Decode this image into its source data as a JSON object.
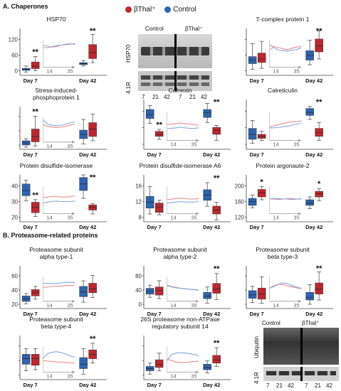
{
  "sectionA": "A. Chaperones",
  "sectionB": "B. Proteasome-related proteins",
  "legend": [
    {
      "label": "βThal⁺",
      "color": "#c0262d"
    },
    {
      "label": "Control",
      "color": "#2e63b0"
    }
  ],
  "colors": {
    "thal": "#c0262d",
    "control": "#2e63b0",
    "thalLine": "#f08a8a",
    "controlLine": "#7fa8de"
  },
  "blotTop": {
    "header_control": "Control",
    "header_thal": "βThal⁺",
    "band1": "HSP70",
    "band2": "4.1R",
    "lanes": [
      "7",
      "21",
      "42",
      "7",
      "21",
      "42"
    ]
  },
  "blotBottom": {
    "header_control": "Control",
    "header_thal": "βThal⁺",
    "band1": "Ubiquitin",
    "band2": "4.1R",
    "lanes": [
      "7",
      "21",
      "42",
      "7",
      "21",
      "42"
    ]
  },
  "chart_data": [
    {
      "type": "box",
      "title": [
        "HSP70"
      ],
      "yticks": [
        "0",
        "60",
        "120"
      ],
      "ylim": [
        0,
        140
      ],
      "xlabels": [
        "Day 7",
        "Day 42"
      ],
      "inset_ticks": [
        "14",
        "35"
      ],
      "significance": [
        "**",
        "**"
      ],
      "boxes": {
        "control": [
          [
            10,
            15,
            18,
            21,
            28
          ],
          [
            28,
            32,
            35,
            38,
            44
          ]
        ],
        "thal": [
          [
            14,
            20,
            27,
            40,
            56
          ],
          [
            38,
            50,
            68,
            92,
            122
          ]
        ]
      },
      "inset": {
        "thal": [
          80,
          76,
          72,
          74,
          80,
          84,
          86,
          82
        ],
        "control": [
          70,
          70,
          74,
          78,
          80,
          82,
          84,
          86
        ]
      }
    },
    {
      "type": "box",
      "title": [
        "T-complex protein 1"
      ],
      "yticks": [
        "",
        "",
        ""
      ],
      "ylim": [
        0,
        4
      ],
      "xlabels": [
        "Day 7",
        "Day 42"
      ],
      "inset_ticks": [
        "14",
        "35"
      ],
      "significance": [
        "",
        "**"
      ],
      "boxes": {
        "control": [
          [
            0.5,
            1.0,
            1.3,
            1.6,
            2.7
          ],
          [
            0.9,
            1.3,
            1.7,
            2.1,
            3.0
          ]
        ],
        "thal": [
          [
            0.6,
            1.1,
            1.4,
            1.9,
            2.9
          ],
          [
            1.4,
            2.0,
            2.5,
            3.1,
            3.8
          ]
        ]
      },
      "inset": {
        "thal": [
          60,
          75,
          70,
          65,
          62,
          68,
          72,
          76
        ],
        "control": [
          82,
          70,
          60,
          58,
          56,
          60,
          62,
          70
        ]
      }
    },
    {
      "type": "box",
      "title": [
        "Stress-induced-",
        "phosphoprotein 1"
      ],
      "yticks": [
        "",
        "",
        ""
      ],
      "ylim": [
        0,
        4
      ],
      "xlabels": [
        "Day 7",
        "Day 42"
      ],
      "inset_ticks": [
        "14",
        "35"
      ],
      "significance": [
        "**",
        ""
      ],
      "boxes": {
        "control": [
          [
            0.2,
            0.4,
            0.6,
            0.8,
            1.0
          ],
          [
            0.5,
            1.0,
            1.4,
            1.8,
            2.8
          ]
        ],
        "thal": [
          [
            0.3,
            0.7,
            1.2,
            1.9,
            3.1
          ],
          [
            0.8,
            1.2,
            1.9,
            2.5,
            3.3
          ]
        ]
      },
      "inset": {
        "thal": [
          68,
          60,
          56,
          54,
          56,
          60,
          66,
          70
        ],
        "control": [
          88,
          70,
          64,
          62,
          64,
          70,
          76,
          80
        ]
      }
    },
    {
      "type": "box",
      "title": [
        "Calnexin"
      ],
      "yticks": [
        "",
        "",
        ""
      ],
      "ylim": [
        0,
        5
      ],
      "xlabels": [
        "Day 7",
        "Day 42"
      ],
      "inset_ticks": [
        "14",
        "35"
      ],
      "significance": [
        "**",
        "**"
      ],
      "boxes": {
        "control": [
          [
            2.6,
            3.1,
            3.5,
            4.0,
            4.4
          ],
          [
            2.7,
            3.2,
            3.7,
            4.0,
            4.6
          ]
        ],
        "thal": [
          [
            1.0,
            1.3,
            1.5,
            1.8,
            2.0
          ],
          [
            0.9,
            1.5,
            1.9,
            2.2,
            2.4
          ]
        ]
      },
      "inset": {
        "thal": [
          52,
          54,
          56,
          58,
          56,
          54,
          52,
          50
        ],
        "control": [
          36,
          38,
          40,
          42,
          40,
          38,
          38,
          40
        ]
      }
    },
    {
      "type": "box",
      "title": [
        "Calreticulin"
      ],
      "yticks": [
        "",
        "",
        ""
      ],
      "ylim": [
        0,
        5
      ],
      "xlabels": [
        "Day 7",
        "Day 42"
      ],
      "inset_ticks": [
        "14",
        "35"
      ],
      "significance": [
        "",
        "**"
      ],
      "boxes": {
        "control": [
          [
            0.6,
            1.0,
            1.5,
            2.1,
            2.9
          ],
          [
            3.0,
            3.4,
            3.7,
            4.1,
            4.3
          ]
        ],
        "thal": [
          [
            0.9,
            1.1,
            1.3,
            1.5,
            1.8
          ],
          [
            0.9,
            1.3,
            1.7,
            2.1,
            2.7
          ]
        ]
      },
      "inset": {
        "thal": [
          44,
          48,
          52,
          56,
          60,
          62,
          64,
          66
        ],
        "control": [
          40,
          40,
          42,
          44,
          46,
          50,
          54,
          58
        ]
      }
    },
    {
      "type": "box",
      "title": [
        "Protein disulfide-isomerase"
      ],
      "yticks": [
        "20",
        "30",
        "40"
      ],
      "ylim": [
        20,
        56
      ],
      "xlabels": [
        "Day 7",
        "Day 42"
      ],
      "inset_ticks": [
        "14",
        "35"
      ],
      "significance": [
        "**",
        "**"
      ],
      "boxes": {
        "control": [
          [
            36,
            40,
            44,
            49,
            52
          ],
          [
            38,
            44,
            49,
            54,
            56
          ]
        ],
        "thal": [
          [
            24,
            27,
            31,
            35,
            37
          ],
          [
            26,
            29,
            31,
            33,
            34
          ]
        ]
      },
      "inset": {
        "thal": [
          56,
          58,
          60,
          60,
          58,
          58,
          60,
          62
        ],
        "control": [
          34,
          38,
          40,
          42,
          40,
          40,
          40,
          42
        ]
      }
    },
    {
      "type": "box",
      "title": [
        "Protein disulfide-isomerase A6"
      ],
      "yticks": [
        "8",
        "12",
        "16"
      ],
      "ylim": [
        6,
        18
      ],
      "xlabels": [
        "Day 7",
        "Day 42"
      ],
      "inset_ticks": [
        "14",
        "35"
      ],
      "significance": [
        "",
        "**"
      ],
      "boxes": {
        "control": [
          [
            8,
            9.5,
            11,
            12.5,
            15
          ],
          [
            10,
            11.5,
            12.8,
            14.2,
            16
          ]
        ],
        "thal": [
          [
            7.8,
            8.4,
            9.8,
            10.8,
            11.5
          ],
          [
            6.5,
            8,
            9,
            10,
            11
          ]
        ]
      },
      "inset": {
        "thal": [
          48,
          50,
          52,
          54,
          52,
          50,
          50,
          52
        ],
        "control": [
          34,
          36,
          38,
          40,
          38,
          38,
          38,
          40
        ]
      }
    },
    {
      "type": "box",
      "title": [
        "Protein argonaute-2"
      ],
      "yticks": [
        "120",
        "160",
        "200"
      ],
      "ylim": [
        115,
        215
      ],
      "xlabels": [
        "Day 7",
        "Day 42"
      ],
      "inset_ticks": [
        "14",
        "35"
      ],
      "significance": [
        "*",
        "*"
      ],
      "boxes": {
        "control": [
          [
            145,
            150,
            158,
            165,
            172
          ],
          [
            143,
            150,
            155,
            162,
            168
          ]
        ],
        "thal": [
          [
            162,
            168,
            177,
            184,
            190
          ],
          [
            160,
            168,
            175,
            180,
            186
          ]
        ]
      },
      "inset": {
        "thal": [
          50,
          50,
          48,
          50,
          52,
          52,
          50,
          50
        ],
        "control": [
          50,
          52,
          52,
          50,
          50,
          48,
          50,
          52
        ]
      }
    },
    {
      "type": "box",
      "title": [
        "Proteasome subunit",
        "alpha type-1"
      ],
      "yticks": [
        "20",
        "40",
        "60"
      ],
      "ylim": [
        10,
        64
      ],
      "xlabels": [
        "Day 7",
        "Day 42"
      ],
      "inset_ticks": [
        "14",
        "35"
      ],
      "significance": [
        "",
        ""
      ],
      "boxes": {
        "control": [
          [
            16,
            19,
            22,
            26,
            29
          ],
          [
            18,
            25,
            31,
            38,
            45
          ]
        ],
        "thal": [
          [
            22,
            26,
            30,
            34,
            38
          ],
          [
            24,
            30,
            35,
            42,
            52
          ]
        ]
      },
      "inset": {
        "thal": [
          52,
          54,
          56,
          58,
          58,
          60,
          60,
          62
        ],
        "control": [
          70,
          70,
          68,
          70,
          72,
          74,
          74,
          74
        ]
      }
    },
    {
      "type": "box",
      "title": [
        "Proteasome subunit",
        "alpha type-2"
      ],
      "yticks": [
        "0",
        "40",
        "80"
      ],
      "ylim": [
        0,
        95
      ],
      "xlabels": [
        "Day 7",
        "Day 42"
      ],
      "inset_ticks": [
        "14",
        "35"
      ],
      "significance": [
        "",
        "**"
      ],
      "boxes": {
        "control": [
          [
            25,
            32,
            38,
            45,
            52
          ],
          [
            12,
            22,
            28,
            36,
            48
          ]
        ],
        "thal": [
          [
            22,
            30,
            40,
            48,
            62
          ],
          [
            20,
            34,
            44,
            56,
            78
          ]
        ]
      },
      "inset": {
        "thal": [
          62,
          56,
          52,
          48,
          46,
          44,
          42,
          40
        ],
        "control": [
          60,
          54,
          50,
          48,
          46,
          44,
          42,
          40
        ]
      }
    },
    {
      "type": "box",
      "title": [
        "Proteasome subunit",
        "beta type-3"
      ],
      "yticks": [
        "",
        "",
        ""
      ],
      "ylim": [
        0,
        5
      ],
      "xlabels": [
        "Day 7",
        "Day 42"
      ],
      "inset_ticks": [
        "14",
        "35"
      ],
      "significance": [
        "",
        "**"
      ],
      "boxes": {
        "control": [
          [
            0.7,
            1.2,
            1.6,
            2.1,
            2.6
          ],
          [
            0.5,
            1.0,
            1.3,
            1.9,
            2.8
          ]
        ],
        "thal": [
          [
            0.6,
            1.1,
            1.7,
            2.4,
            3.7
          ],
          [
            1.0,
            1.7,
            2.3,
            3.0,
            4.3
          ]
        ]
      },
      "inset": {
        "thal": [
          48,
          60,
          66,
          64,
          58,
          54,
          50,
          46
        ],
        "control": [
          48,
          56,
          66,
          72,
          68,
          60,
          54,
          48
        ]
      }
    },
    {
      "type": "box",
      "title": [
        "Proteasome subunit",
        "beta type-4"
      ],
      "yticks": [
        "",
        "",
        ""
      ],
      "ylim": [
        0,
        4
      ],
      "xlabels": [
        "Day 7",
        "Day 42"
      ],
      "inset_ticks": [
        "14",
        "35"
      ],
      "significance": [
        "",
        "**"
      ],
      "boxes": {
        "control": [
          [
            0.8,
            1.4,
            1.9,
            2.3,
            2.8
          ],
          [
            0.5,
            1.0,
            1.4,
            2.0,
            2.8
          ]
        ],
        "thal": [
          [
            0.9,
            1.3,
            1.9,
            2.3,
            2.8
          ],
          [
            1.5,
            1.9,
            2.3,
            2.7,
            3.3
          ]
        ]
      },
      "inset": {
        "thal": [
          40,
          38,
          36,
          34,
          34,
          32,
          30,
          30
        ],
        "control": [
          50,
          70,
          76,
          78,
          74,
          68,
          60,
          54
        ]
      }
    },
    {
      "type": "box",
      "title": [
        "26S proteasome non-ATPase",
        "regulatory subunit 14"
      ],
      "yticks": [
        "",
        "",
        ""
      ],
      "ylim": [
        0,
        4
      ],
      "xlabels": [
        "Day 7",
        "Day 42"
      ],
      "inset_ticks": [
        "14",
        "35"
      ],
      "significance": [
        "",
        "**"
      ],
      "boxes": {
        "control": [
          [
            0.5,
            0.8,
            1.0,
            1.2,
            1.5
          ],
          [
            0.6,
            0.9,
            1.1,
            1.4,
            1.7
          ]
        ],
        "thal": [
          [
            0.8,
            1.1,
            1.4,
            1.8,
            2.4
          ],
          [
            1.2,
            1.5,
            1.8,
            2.2,
            2.9
          ]
        ]
      },
      "inset": {
        "thal": [
          46,
          40,
          34,
          32,
          32,
          34,
          36,
          38
        ],
        "control": [
          40,
          66,
          72,
          74,
          72,
          70,
          66,
          60
        ]
      }
    }
  ]
}
